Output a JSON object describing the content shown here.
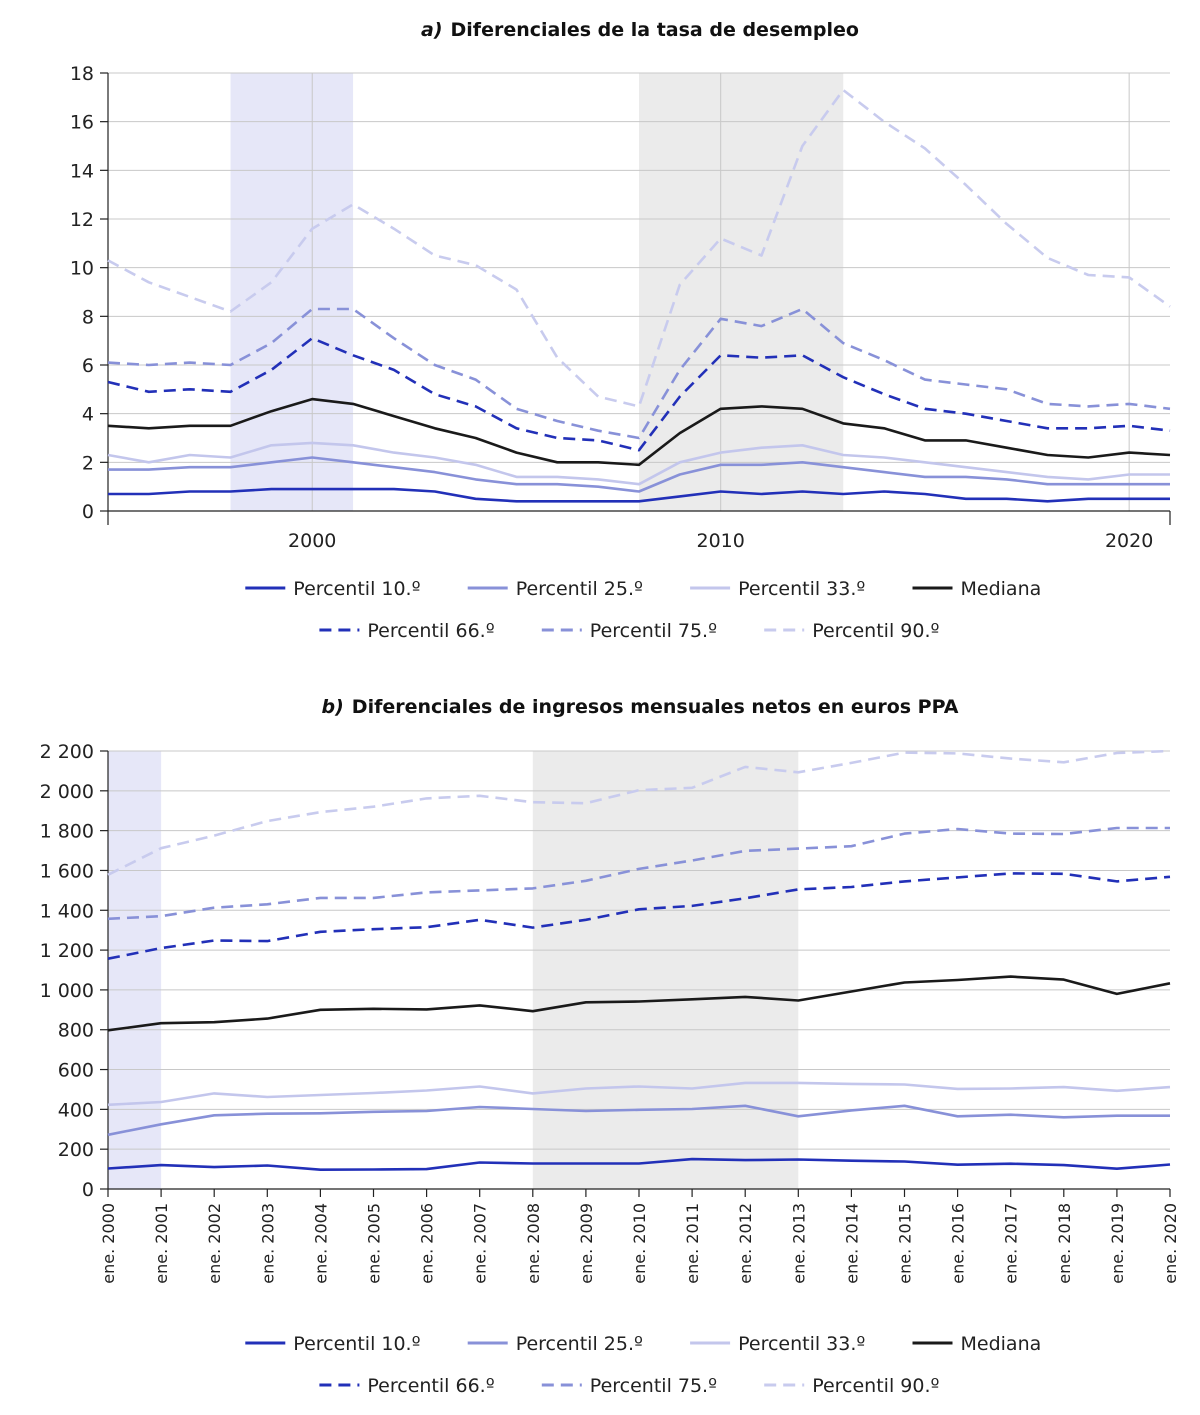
{
  "colors": {
    "p10": "#2230b8",
    "p25": "#8891d8",
    "p33": "#c3c6ec",
    "median": "#1a1a1a",
    "p66": "#2230b8",
    "p75": "#8891d8",
    "p90": "#c8cbee",
    "shade_blue": "#e6e7f8",
    "shade_grey": "#ebebeb",
    "grid": "#c8c8c8"
  },
  "chart_data": [
    {
      "type": "line",
      "title_letter": "a)",
      "title": "Diferenciales de la tasa de desempleo",
      "xlabel": "",
      "ylabel": "",
      "xlim": [
        1995,
        2021
      ],
      "ylim": [
        0,
        18
      ],
      "yticks": [
        0,
        2,
        4,
        6,
        8,
        10,
        12,
        14,
        16,
        18
      ],
      "xticks": [
        {
          "value": 2000,
          "label": "2000"
        },
        {
          "value": 2010,
          "label": "2010"
        },
        {
          "value": 2020,
          "label": "2020"
        }
      ],
      "grid": true,
      "shaded_periods": [
        {
          "from": 1998,
          "to": 2001,
          "color": "shade_blue"
        },
        {
          "from": 2008,
          "to": 2013,
          "color": "shade_grey"
        }
      ],
      "x": [
        1995,
        1996,
        1997,
        1998,
        1999,
        2000,
        2001,
        2002,
        2003,
        2004,
        2005,
        2006,
        2007,
        2008,
        2009,
        2010,
        2011,
        2012,
        2013,
        2014,
        2015,
        2016,
        2017,
        2018,
        2019,
        2020,
        2021
      ],
      "series": [
        {
          "name": "Percentil 10.º",
          "key": "p10",
          "dash": false,
          "values": [
            0.7,
            0.7,
            0.8,
            0.8,
            0.9,
            0.9,
            0.9,
            0.9,
            0.8,
            0.5,
            0.4,
            0.4,
            0.4,
            0.4,
            0.6,
            0.8,
            0.7,
            0.8,
            0.7,
            0.8,
            0.7,
            0.5,
            0.5,
            0.4,
            0.5,
            0.5,
            0.5
          ]
        },
        {
          "name": "Percentil 25.º",
          "key": "p25",
          "dash": false,
          "values": [
            1.7,
            1.7,
            1.8,
            1.8,
            2.0,
            2.2,
            2.0,
            1.8,
            1.6,
            1.3,
            1.1,
            1.1,
            1.0,
            0.8,
            1.5,
            1.9,
            1.9,
            2.0,
            1.8,
            1.6,
            1.4,
            1.4,
            1.3,
            1.1,
            1.1,
            1.1,
            1.1
          ]
        },
        {
          "name": "Percentil 33.º",
          "key": "p33",
          "dash": false,
          "values": [
            2.3,
            2.0,
            2.3,
            2.2,
            2.7,
            2.8,
            2.7,
            2.4,
            2.2,
            1.9,
            1.4,
            1.4,
            1.3,
            1.1,
            2.0,
            2.4,
            2.6,
            2.7,
            2.3,
            2.2,
            2.0,
            1.8,
            1.6,
            1.4,
            1.3,
            1.5,
            1.5
          ]
        },
        {
          "name": "Mediana",
          "key": "median",
          "dash": false,
          "values": [
            3.5,
            3.4,
            3.5,
            3.5,
            4.1,
            4.6,
            4.4,
            3.9,
            3.4,
            3.0,
            2.4,
            2.0,
            2.0,
            1.9,
            3.2,
            4.2,
            4.3,
            4.2,
            3.6,
            3.4,
            2.9,
            2.9,
            2.6,
            2.3,
            2.2,
            2.4,
            2.3
          ]
        },
        {
          "name": "Percentil 66.º",
          "key": "p66",
          "dash": true,
          "values": [
            5.3,
            4.9,
            5.0,
            4.9,
            5.8,
            7.1,
            6.4,
            5.8,
            4.8,
            4.3,
            3.4,
            3.0,
            2.9,
            2.5,
            4.7,
            6.4,
            6.3,
            6.4,
            5.5,
            4.8,
            4.2,
            4.0,
            3.7,
            3.4,
            3.4,
            3.5,
            3.3
          ]
        },
        {
          "name": "Percentil 75.º",
          "key": "p75",
          "dash": true,
          "values": [
            6.1,
            6.0,
            6.1,
            6.0,
            6.9,
            8.3,
            8.3,
            7.1,
            6.0,
            5.4,
            4.2,
            3.7,
            3.3,
            3.0,
            5.8,
            7.9,
            7.6,
            8.3,
            6.9,
            6.2,
            5.4,
            5.2,
            5.0,
            4.4,
            4.3,
            4.4,
            4.2
          ]
        },
        {
          "name": "Percentil 90.º",
          "key": "p90",
          "dash": true,
          "values": [
            10.3,
            9.4,
            8.8,
            8.2,
            9.4,
            11.6,
            12.6,
            11.6,
            10.5,
            10.1,
            9.1,
            6.3,
            4.7,
            4.3,
            9.3,
            11.2,
            10.5,
            15.0,
            17.3,
            16.0,
            14.9,
            13.4,
            11.8,
            10.4,
            9.7,
            9.6,
            8.4
          ]
        }
      ],
      "legend": {
        "row1": [
          "Percentil 10.º",
          "Percentil 25.º",
          "Percentil 33.º",
          "Mediana"
        ],
        "row2": [
          "Percentil 66.º",
          "Percentil 75.º",
          "Percentil 90.º"
        ],
        "placement": "bottom"
      }
    },
    {
      "type": "line",
      "title_letter": "b)",
      "title": "Diferenciales de ingresos mensuales netos en euros PPA",
      "xlabel": "",
      "ylabel": "",
      "ylim": [
        0,
        2200
      ],
      "yticks": [
        0,
        200,
        400,
        600,
        800,
        1000,
        1200,
        1400,
        1600,
        1800,
        2000,
        2200
      ],
      "ytick_labels": [
        "0",
        "200",
        "400",
        "600",
        "800",
        "1 000",
        "1 200",
        "1 400",
        "1 600",
        "1 800",
        "2 000",
        "2 200"
      ],
      "categories": [
        "ene. 2000",
        "ene. 2001",
        "ene. 2002",
        "ene. 2003",
        "ene. 2004",
        "ene. 2005",
        "ene. 2006",
        "ene. 2007",
        "ene. 2008",
        "ene. 2009",
        "ene. 2010",
        "ene. 2011",
        "ene. 2012",
        "ene. 2013",
        "ene. 2014",
        "ene. 2015",
        "ene. 2016",
        "ene. 2017",
        "ene. 2018",
        "ene. 2019",
        "ene. 2020"
      ],
      "grid": true,
      "shaded_periods": [
        {
          "from": 0,
          "to": 1,
          "color": "shade_blue"
        },
        {
          "from": 8,
          "to": 13,
          "color": "shade_grey"
        }
      ],
      "series": [
        {
          "name": "Percentil 10.º",
          "key": "p10",
          "dash": false,
          "values": [
            103,
            120,
            110,
            118,
            97,
            98,
            100,
            133,
            128,
            128,
            128,
            150,
            145,
            148,
            142,
            138,
            122,
            127,
            120,
            102,
            123
          ]
        },
        {
          "name": "Percentil 25.º",
          "key": "p25",
          "dash": false,
          "values": [
            272,
            325,
            370,
            378,
            380,
            388,
            392,
            412,
            402,
            392,
            398,
            402,
            418,
            365,
            395,
            418,
            365,
            373,
            360,
            368,
            368
          ]
        },
        {
          "name": "Percentil 33.º",
          "key": "p33",
          "dash": false,
          "values": [
            423,
            437,
            480,
            462,
            472,
            482,
            495,
            515,
            480,
            505,
            515,
            505,
            533,
            533,
            528,
            525,
            503,
            505,
            512,
            493,
            512
          ]
        },
        {
          "name": "Mediana",
          "key": "median",
          "dash": false,
          "values": [
            797,
            833,
            838,
            856,
            900,
            905,
            902,
            922,
            893,
            938,
            942,
            953,
            965,
            947,
            992,
            1037,
            1050,
            1067,
            1052,
            980,
            1033
          ]
        },
        {
          "name": "Percentil 66.º",
          "key": "p66",
          "dash": true,
          "values": [
            1157,
            1210,
            1248,
            1245,
            1292,
            1305,
            1315,
            1352,
            1313,
            1352,
            1405,
            1422,
            1460,
            1505,
            1517,
            1545,
            1565,
            1585,
            1583,
            1545,
            1568
          ]
        },
        {
          "name": "Percentil 75.º",
          "key": "p75",
          "dash": true,
          "values": [
            1357,
            1370,
            1413,
            1430,
            1462,
            1462,
            1490,
            1500,
            1510,
            1548,
            1608,
            1650,
            1698,
            1710,
            1722,
            1785,
            1808,
            1785,
            1783,
            1813,
            1813
          ]
        },
        {
          "name": "Percentil 90.º",
          "key": "p90",
          "dash": true,
          "values": [
            1578,
            1712,
            1775,
            1848,
            1893,
            1920,
            1962,
            1975,
            1943,
            1938,
            2003,
            2015,
            2120,
            2093,
            2140,
            2192,
            2188,
            2162,
            2143,
            2190,
            2200
          ]
        }
      ],
      "legend": {
        "row1": [
          "Percentil 10.º",
          "Percentil 25.º",
          "Percentil 33.º",
          "Mediana"
        ],
        "row2": [
          "Percentil 66.º",
          "Percentil 75.º",
          "Percentil 90.º"
        ],
        "placement": "bottom"
      }
    }
  ]
}
